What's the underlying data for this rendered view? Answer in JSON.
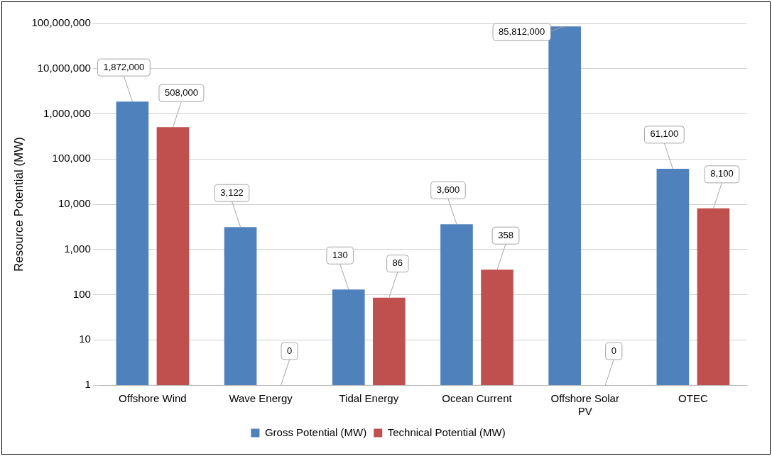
{
  "chart_data": {
    "type": "bar",
    "ylabel": "Resource Potential (MW)",
    "categories": [
      "Offshore Wind",
      "Wave Energy",
      "Tidal Energy",
      "Ocean Current",
      "Offshore Solar PV",
      "OTEC"
    ],
    "series": [
      {
        "name": "Gross Potential (MW)",
        "color": "#4f81bd",
        "values": [
          1872000,
          3122,
          130,
          3600,
          85812000,
          61100
        ],
        "value_labels": [
          "1,872,000",
          "3,122",
          "130",
          "3,600",
          "85,812,000",
          "61,100"
        ]
      },
      {
        "name": "Technical Potential (MW)",
        "color": "#c0504d",
        "values": [
          508000,
          null,
          86,
          358,
          null,
          8100
        ],
        "value_labels": [
          "508,000",
          "0",
          "86",
          "358",
          "0",
          "8,100"
        ]
      }
    ],
    "log": true,
    "ylim": [
      1,
      100000000
    ],
    "yticks": [
      1,
      10,
      100,
      {
        "value": 1000,
        "label": "1,000"
      },
      {
        "value": 10000,
        "label": "10,000"
      },
      {
        "value": 100000,
        "label": "100,000"
      },
      {
        "value": 1000000,
        "label": "1,000,000"
      },
      {
        "value": 10000000,
        "label": "10,000,000"
      },
      {
        "value": 100000000,
        "label": "100,000,000"
      }
    ],
    "grid": "y",
    "legend": "bottom"
  }
}
